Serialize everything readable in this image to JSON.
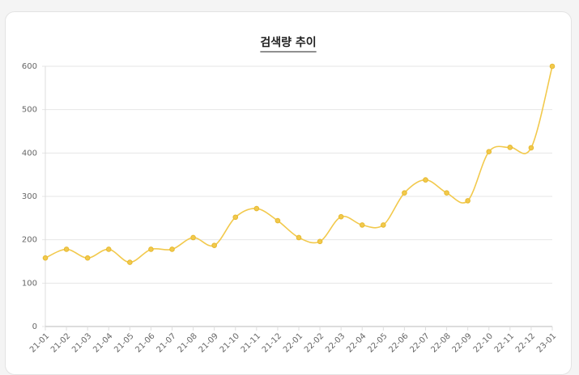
{
  "chart_data": {
    "type": "line",
    "title": "검색량 추이",
    "categories": [
      "21-01",
      "21-02",
      "21-03",
      "21-04",
      "21-05",
      "21-06",
      "21-07",
      "21-08",
      "21-09",
      "21-10",
      "21-11",
      "21-12",
      "22-01",
      "22-02",
      "22-03",
      "22-04",
      "22-05",
      "22-06",
      "22-07",
      "22-08",
      "22-09",
      "22-10",
      "22-11",
      "22-12",
      "23-01"
    ],
    "values": [
      158,
      178,
      158,
      178,
      148,
      178,
      178,
      205,
      187,
      252,
      272,
      244,
      205,
      196,
      253,
      234,
      234,
      308,
      338,
      308,
      290,
      403,
      413,
      412,
      600
    ],
    "color": "#f2c94c",
    "ylim": [
      0,
      600
    ],
    "yticks": [
      0,
      100,
      200,
      300,
      400,
      500,
      600
    ],
    "grid": true
  }
}
